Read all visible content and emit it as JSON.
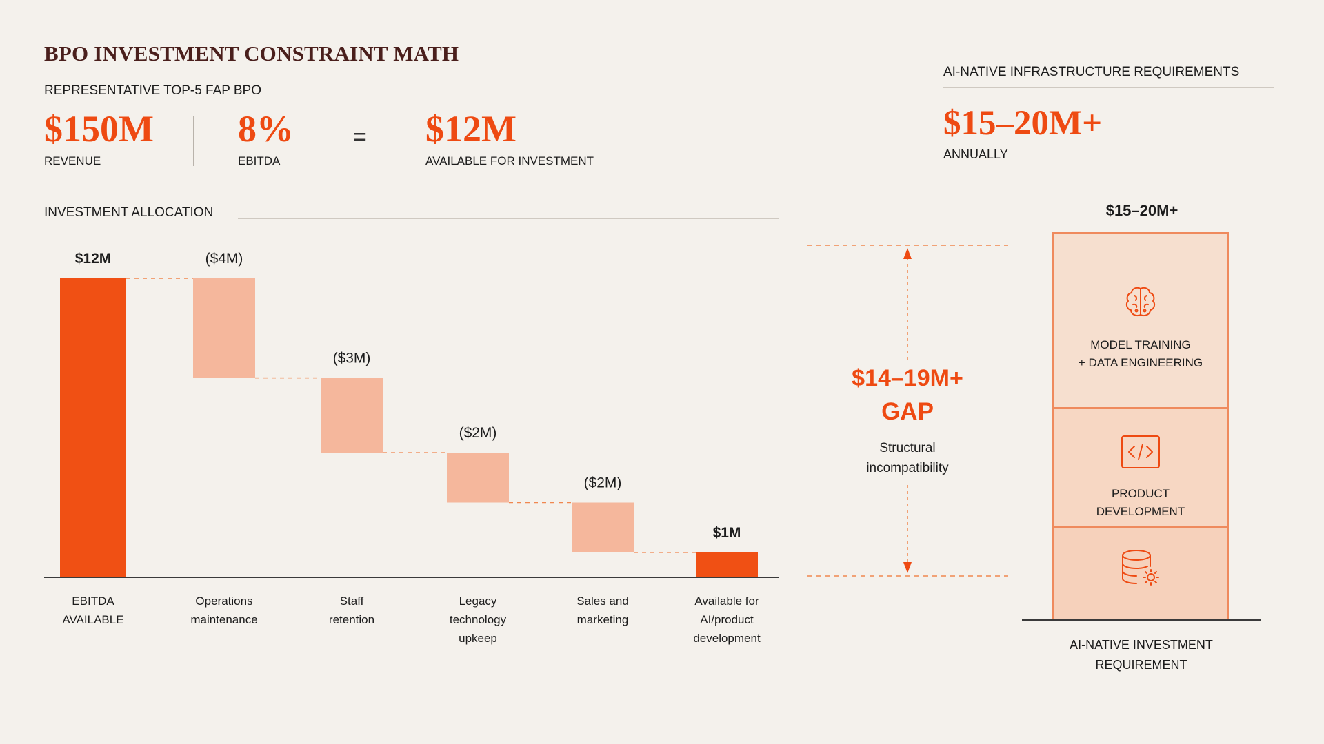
{
  "header": {
    "title": "BPO INVESTMENT CONSTRAINT MATH",
    "subtitle": "REPRESENTATIVE TOP-5 FAP BPO"
  },
  "metrics": [
    {
      "value": "$150M",
      "label": "REVENUE"
    },
    {
      "value": "8%",
      "label": "EBITDA"
    },
    {
      "value": "$12M",
      "label": "AVAILABLE FOR INVESTMENT"
    }
  ],
  "equals": "=",
  "right_panel": {
    "heading": "AI-NATIVE INFRASTRUCTURE REQUIREMENTS",
    "value": "$15–20M+",
    "sub": "ANNUALLY"
  },
  "allocation": {
    "heading": "INVESTMENT ALLOCATION"
  },
  "chart_data": {
    "type": "bar",
    "subtype": "waterfall",
    "unit": "$M",
    "categories": [
      "EBITDA AVAILABLE",
      "Operations maintenance",
      "Staff retention",
      "Legacy technology upkeep",
      "Sales and marketing",
      "Available for AI/product development"
    ],
    "category_lines": [
      [
        "EBITDA",
        "AVAILABLE"
      ],
      [
        "Operations",
        "maintenance"
      ],
      [
        "Staff",
        "retention"
      ],
      [
        "Legacy",
        "technology",
        "upkeep"
      ],
      [
        "Sales and",
        "marketing"
      ],
      [
        "Available for",
        "AI/product",
        "development"
      ]
    ],
    "values": [
      12,
      -4,
      -3,
      -2,
      -2,
      1
    ],
    "kinds": [
      "total",
      "decrease",
      "decrease",
      "decrease",
      "decrease",
      "total"
    ],
    "value_labels": [
      "$12M",
      "($4M)",
      "($3M)",
      "($2M)",
      "($2M)",
      "$1M"
    ],
    "ylim": [
      0,
      12
    ],
    "colors": {
      "total": "#f05014",
      "decrease": "#f5b79c"
    }
  },
  "gap": {
    "value": "$14–19M+",
    "word": "GAP",
    "note_lines": [
      "Structural",
      "incompatibility"
    ]
  },
  "requirement_stack": {
    "top_label": "$15–20M+",
    "segments": [
      {
        "icon": "brain-icon",
        "lines": [
          "MODEL TRAINING",
          "+ DATA ENGINEERING"
        ]
      },
      {
        "icon": "code-icon",
        "lines": [
          "PRODUCT",
          "DEVELOPMENT"
        ]
      },
      {
        "icon": "database-gear-icon",
        "lines": []
      }
    ],
    "caption_lines": [
      "AI-NATIVE INVESTMENT",
      "REQUIREMENT"
    ]
  },
  "colors": {
    "accent": "#ee4a12",
    "background": "#f4f1ec",
    "title": "#4a1f1c"
  }
}
